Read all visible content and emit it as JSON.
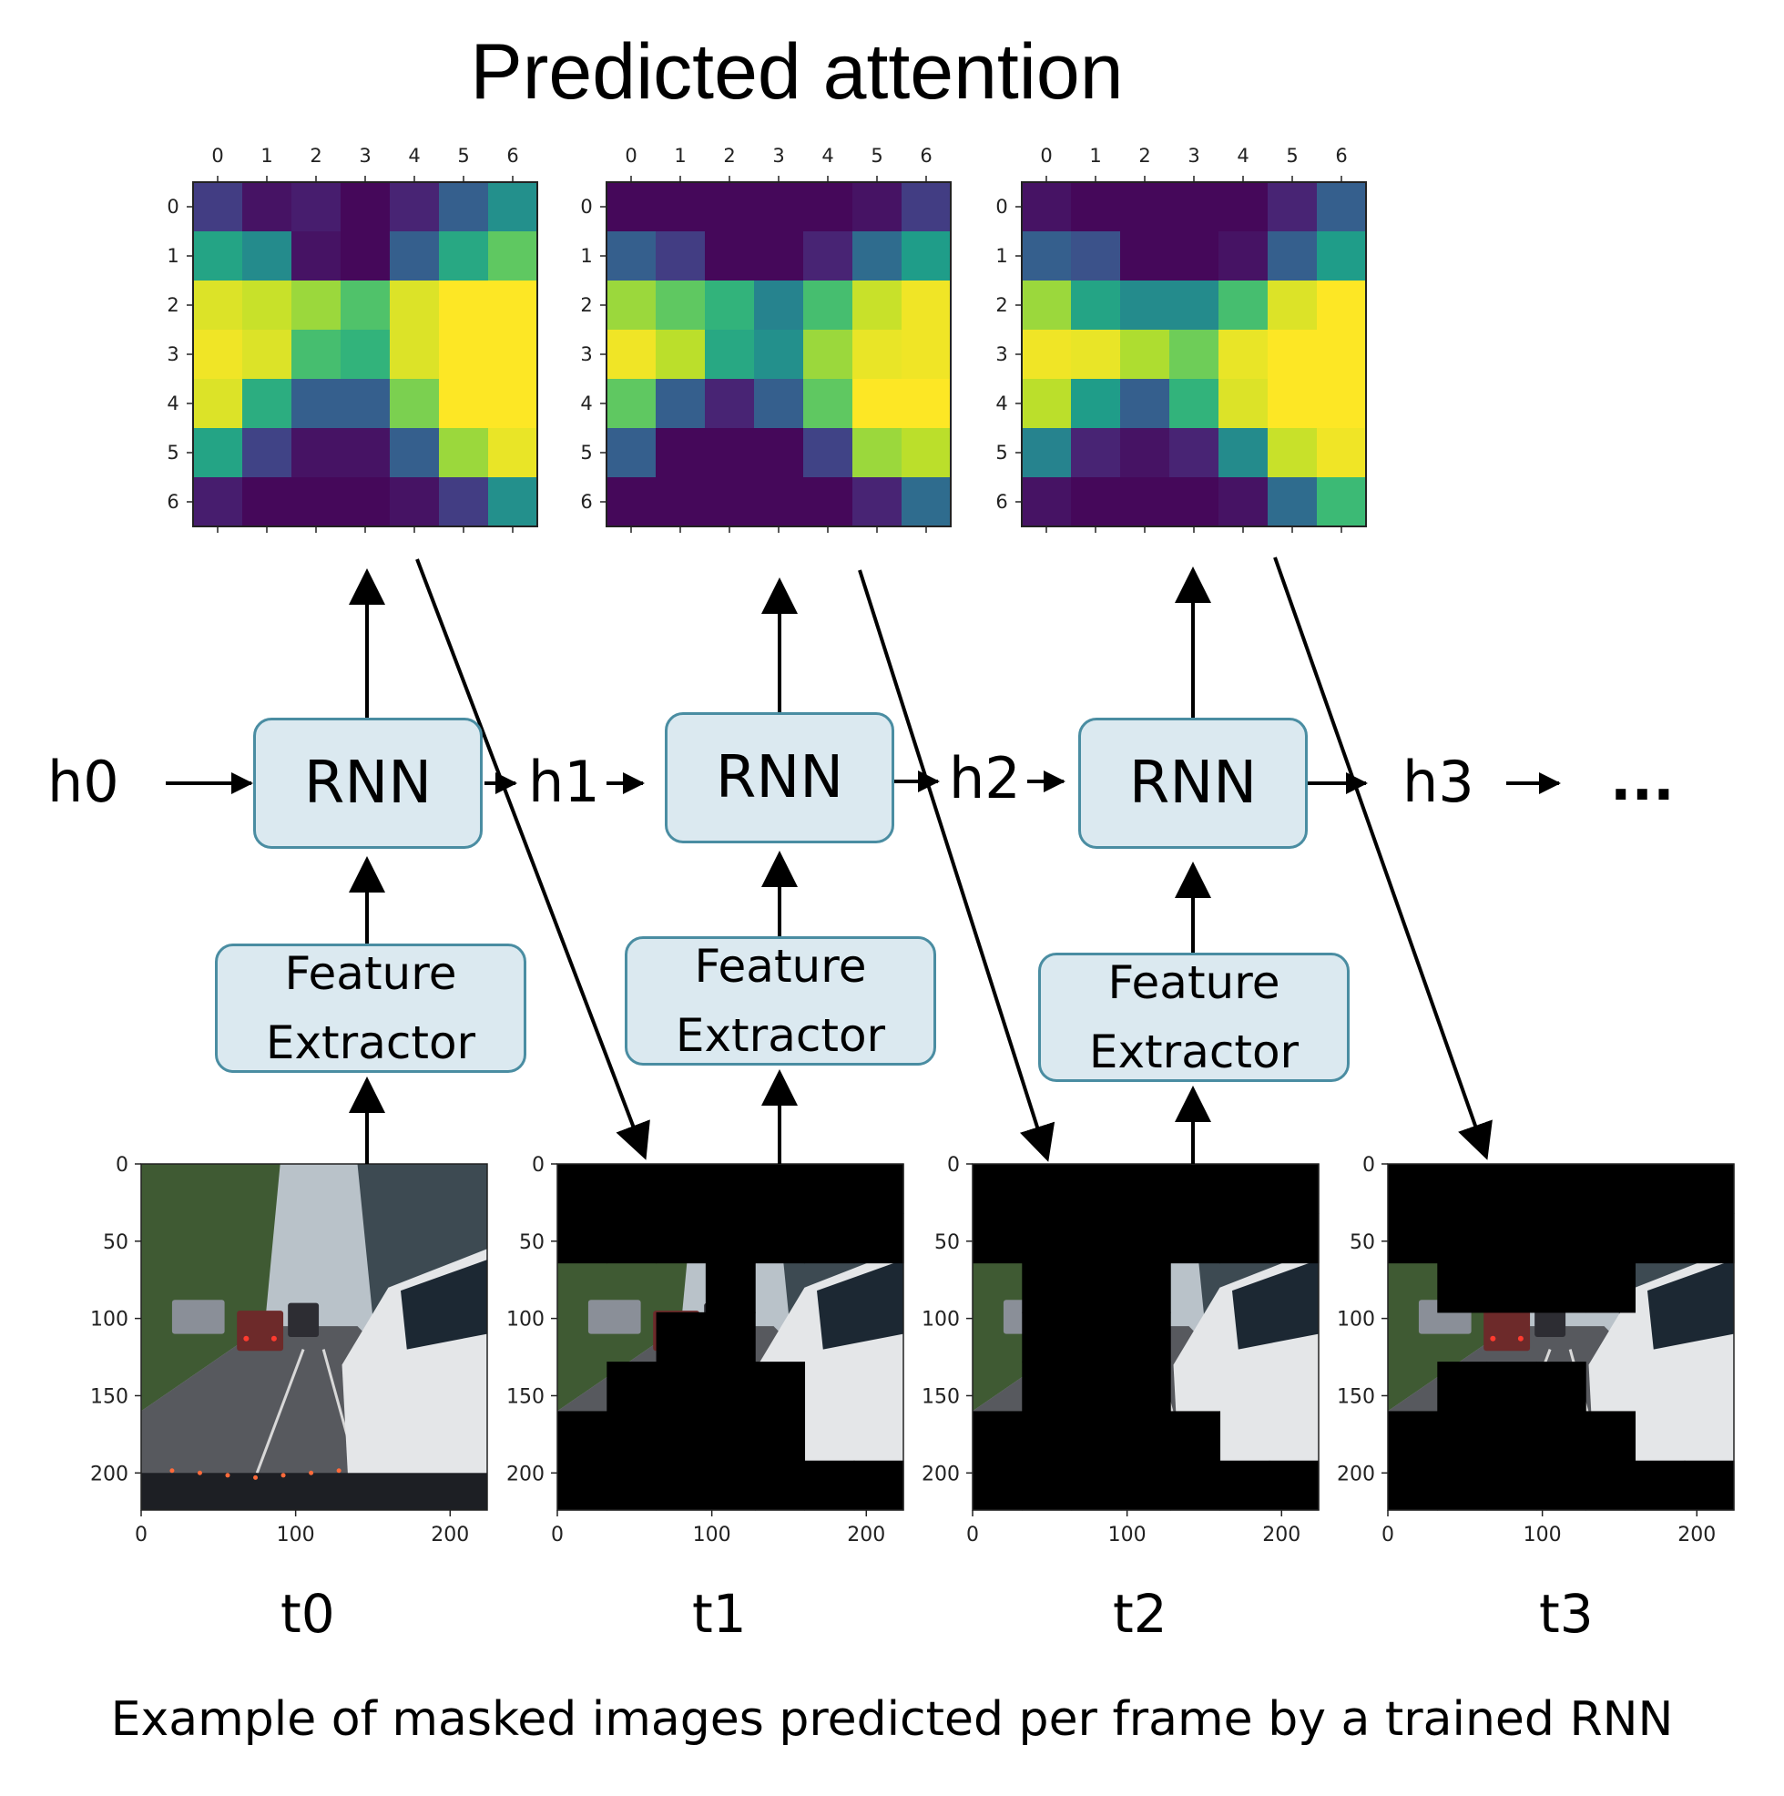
{
  "title": "Predicted attention",
  "caption": "Example of masked images predicted per frame by a trained RNN",
  "hidden_states": [
    "h0",
    "h1",
    "h2",
    "h3",
    "..."
  ],
  "rnn_label": "RNN",
  "feature_extractor": {
    "line1": "Feature",
    "line2": "Extractor"
  },
  "time_labels": [
    "t0",
    "t1",
    "t2",
    "t3"
  ],
  "heatmap_ticks": [
    "0",
    "1",
    "2",
    "3",
    "4",
    "5",
    "6"
  ],
  "image_y_ticks": [
    "0",
    "50",
    "100",
    "150",
    "200"
  ],
  "image_x_ticks": [
    "0",
    "100",
    "200"
  ],
  "colors": {
    "box_fill": "#dbe9f0",
    "box_border": "#4a8da2",
    "masked_region": "#000000"
  },
  "chart_data": [
    {
      "type": "heatmap",
      "colormap": "viridis",
      "rows": [
        [
          0.18,
          0.05,
          0.08,
          0.02,
          0.1,
          0.3,
          0.5
        ],
        [
          0.58,
          0.48,
          0.05,
          0.02,
          0.3,
          0.6,
          0.75
        ],
        [
          0.95,
          0.92,
          0.85,
          0.72,
          0.95,
          1.0,
          1.0
        ],
        [
          0.98,
          0.95,
          0.7,
          0.65,
          0.95,
          1.0,
          1.0
        ],
        [
          0.95,
          0.62,
          0.3,
          0.3,
          0.8,
          1.0,
          1.0
        ],
        [
          0.58,
          0.2,
          0.05,
          0.05,
          0.3,
          0.85,
          0.97
        ],
        [
          0.08,
          0.02,
          0.02,
          0.02,
          0.05,
          0.18,
          0.5
        ]
      ]
    },
    {
      "type": "heatmap",
      "colormap": "viridis",
      "rows": [
        [
          0.02,
          0.02,
          0.02,
          0.02,
          0.02,
          0.05,
          0.18
        ],
        [
          0.3,
          0.18,
          0.02,
          0.02,
          0.1,
          0.35,
          0.55
        ],
        [
          0.85,
          0.75,
          0.65,
          0.45,
          0.7,
          0.92,
          0.98
        ],
        [
          0.98,
          0.9,
          0.6,
          0.5,
          0.85,
          0.97,
          0.98
        ],
        [
          0.75,
          0.3,
          0.1,
          0.3,
          0.75,
          1.0,
          1.0
        ],
        [
          0.3,
          0.02,
          0.02,
          0.02,
          0.2,
          0.85,
          0.9
        ],
        [
          0.02,
          0.02,
          0.02,
          0.02,
          0.02,
          0.1,
          0.35
        ]
      ]
    },
    {
      "type": "heatmap",
      "colormap": "viridis",
      "rows": [
        [
          0.05,
          0.02,
          0.02,
          0.02,
          0.02,
          0.1,
          0.3
        ],
        [
          0.3,
          0.25,
          0.02,
          0.02,
          0.05,
          0.3,
          0.55
        ],
        [
          0.85,
          0.58,
          0.48,
          0.48,
          0.7,
          0.95,
          1.0
        ],
        [
          0.98,
          0.97,
          0.88,
          0.78,
          0.97,
          1.0,
          1.0
        ],
        [
          0.9,
          0.55,
          0.3,
          0.65,
          0.95,
          1.0,
          1.0
        ],
        [
          0.45,
          0.1,
          0.05,
          0.1,
          0.48,
          0.92,
          0.98
        ],
        [
          0.05,
          0.02,
          0.02,
          0.02,
          0.05,
          0.35,
          0.68
        ]
      ]
    }
  ],
  "masked_frames": [
    {
      "frame": "t0",
      "visible_cells": "all"
    },
    {
      "frame": "t1",
      "visible_rows": [
        [
          0,
          0,
          0,
          0,
          0,
          0,
          0
        ],
        [
          0,
          0,
          0,
          0,
          0,
          0,
          0
        ],
        [
          1,
          1,
          1,
          0,
          1,
          1,
          1
        ],
        [
          1,
          1,
          0,
          0,
          1,
          1,
          1
        ],
        [
          1,
          0,
          0,
          0,
          0,
          1,
          1
        ],
        [
          0,
          0,
          0,
          0,
          0,
          1,
          1
        ],
        [
          0,
          0,
          0,
          0,
          0,
          0,
          0
        ]
      ]
    },
    {
      "frame": "t2",
      "visible_rows": [
        [
          0,
          0,
          0,
          0,
          0,
          0,
          0
        ],
        [
          0,
          0,
          0,
          0,
          0,
          0,
          0
        ],
        [
          1,
          0,
          0,
          0,
          1,
          1,
          1
        ],
        [
          1,
          0,
          0,
          0,
          1,
          1,
          1
        ],
        [
          1,
          0,
          0,
          0,
          1,
          1,
          1
        ],
        [
          0,
          0,
          0,
          0,
          0,
          1,
          1
        ],
        [
          0,
          0,
          0,
          0,
          0,
          0,
          0
        ]
      ]
    },
    {
      "frame": "t3",
      "visible_rows": [
        [
          0,
          0,
          0,
          0,
          0,
          0,
          0
        ],
        [
          0,
          0,
          0,
          0,
          0,
          0,
          0
        ],
        [
          1,
          0,
          0,
          0,
          0,
          1,
          1
        ],
        [
          1,
          1,
          1,
          1,
          1,
          1,
          1
        ],
        [
          1,
          0,
          0,
          0,
          1,
          1,
          1
        ],
        [
          0,
          0,
          0,
          0,
          0,
          1,
          1
        ],
        [
          0,
          0,
          0,
          0,
          0,
          0,
          0
        ]
      ]
    }
  ]
}
